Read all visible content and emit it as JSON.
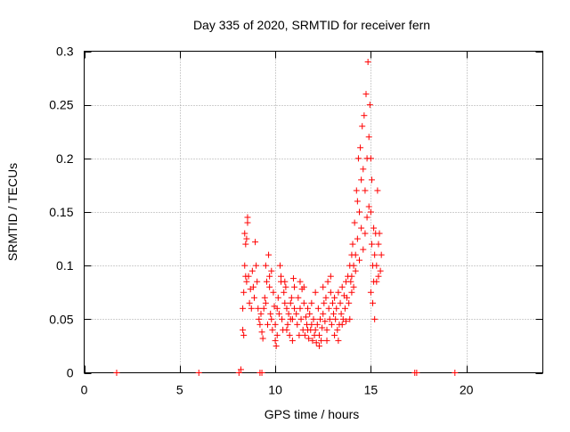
{
  "chart_data": {
    "type": "scatter",
    "title": "Day 335 of 2020, SRMTID for receiver fern",
    "xlabel": "GPS time / hours",
    "ylabel": "SRMTID / TECUs",
    "xlim": [
      0,
      24
    ],
    "ylim": [
      0,
      0.3
    ],
    "x_ticks": [
      0,
      5,
      10,
      15,
      20
    ],
    "x_tick_labels": [
      "0",
      "5",
      "10",
      "15",
      "20"
    ],
    "y_ticks": [
      0,
      0.05,
      0.1,
      0.15,
      0.2,
      0.25,
      0.3
    ],
    "y_tick_labels": [
      "0",
      "0.05",
      "0.1",
      "0.15",
      "0.2",
      "0.25",
      "0.3"
    ],
    "grid": true,
    "marker": "plus",
    "color": "#ff0000",
    "series": [
      {
        "name": "SRMTID",
        "points": [
          [
            1.7,
            0.0
          ],
          [
            6.0,
            0.0
          ],
          [
            8.1,
            0.0
          ],
          [
            8.2,
            0.003
          ],
          [
            9.2,
            0.0
          ],
          [
            9.3,
            0.0
          ],
          [
            17.3,
            0.0
          ],
          [
            17.4,
            0.0
          ],
          [
            19.4,
            0.0
          ],
          [
            8.3,
            0.06
          ],
          [
            8.35,
            0.075
          ],
          [
            8.4,
            0.1
          ],
          [
            8.45,
            0.09
          ],
          [
            8.5,
            0.085
          ],
          [
            8.3,
            0.04
          ],
          [
            8.35,
            0.035
          ],
          [
            8.4,
            0.13
          ],
          [
            8.45,
            0.12
          ],
          [
            8.5,
            0.125
          ],
          [
            8.55,
            0.145
          ],
          [
            8.55,
            0.14
          ],
          [
            8.6,
            0.09
          ],
          [
            8.65,
            0.065
          ],
          [
            8.7,
            0.078
          ],
          [
            8.75,
            0.06
          ],
          [
            8.8,
            0.095
          ],
          [
            8.85,
            0.08
          ],
          [
            8.9,
            0.07
          ],
          [
            8.95,
            0.122
          ],
          [
            9.0,
            0.1
          ],
          [
            9.05,
            0.085
          ],
          [
            9.1,
            0.06
          ],
          [
            9.15,
            0.05
          ],
          [
            9.2,
            0.045
          ],
          [
            9.25,
            0.055
          ],
          [
            9.3,
            0.038
          ],
          [
            9.35,
            0.032
          ],
          [
            9.4,
            0.06
          ],
          [
            9.45,
            0.07
          ],
          [
            9.5,
            0.065
          ],
          [
            9.55,
            0.085
          ],
          [
            9.6,
            0.045
          ],
          [
            9.65,
            0.11
          ],
          [
            9.7,
            0.09
          ],
          [
            9.75,
            0.055
          ],
          [
            9.8,
            0.05
          ],
          [
            9.85,
            0.04
          ],
          [
            9.9,
            0.075
          ],
          [
            9.95,
            0.062
          ],
          [
            10.0,
            0.03
          ],
          [
            10.05,
            0.025
          ],
          [
            10.1,
            0.06
          ],
          [
            10.15,
            0.07
          ],
          [
            10.2,
            0.055
          ],
          [
            10.25,
            0.1
          ],
          [
            10.3,
            0.085
          ],
          [
            10.35,
            0.05
          ],
          [
            10.4,
            0.04
          ],
          [
            10.45,
            0.075
          ],
          [
            10.5,
            0.065
          ],
          [
            10.55,
            0.08
          ],
          [
            10.6,
            0.06
          ],
          [
            10.65,
            0.045
          ],
          [
            10.7,
            0.055
          ],
          [
            10.75,
            0.035
          ],
          [
            10.8,
            0.065
          ],
          [
            10.85,
            0.07
          ],
          [
            10.9,
            0.05
          ],
          [
            10.95,
            0.088
          ],
          [
            11.0,
            0.06
          ],
          [
            9.5,
            0.1
          ],
          [
            9.7,
            0.08
          ],
          [
            9.8,
            0.095
          ],
          [
            10.0,
            0.045
          ],
          [
            10.1,
            0.035
          ],
          [
            10.3,
            0.09
          ],
          [
            10.5,
            0.085
          ],
          [
            10.6,
            0.04
          ],
          [
            10.8,
            0.05
          ],
          [
            10.9,
            0.03
          ],
          [
            11.0,
            0.08
          ],
          [
            11.1,
            0.055
          ],
          [
            11.15,
            0.045
          ],
          [
            11.2,
            0.07
          ],
          [
            11.25,
            0.035
          ],
          [
            11.3,
            0.06
          ],
          [
            11.35,
            0.05
          ],
          [
            11.4,
            0.078
          ],
          [
            11.45,
            0.04
          ],
          [
            11.5,
            0.065
          ],
          [
            11.55,
            0.035
          ],
          [
            11.6,
            0.052
          ],
          [
            11.65,
            0.045
          ],
          [
            11.7,
            0.06
          ],
          [
            11.75,
            0.032
          ],
          [
            11.8,
            0.055
          ],
          [
            11.85,
            0.04
          ],
          [
            11.9,
            0.045
          ],
          [
            11.95,
            0.03
          ],
          [
            12.0,
            0.05
          ],
          [
            12.05,
            0.035
          ],
          [
            12.1,
            0.04
          ],
          [
            12.15,
            0.028
          ],
          [
            12.2,
            0.045
          ],
          [
            12.25,
            0.06
          ],
          [
            12.3,
            0.035
          ],
          [
            12.35,
            0.05
          ],
          [
            12.4,
            0.03
          ],
          [
            12.45,
            0.042
          ],
          [
            12.5,
            0.055
          ],
          [
            12.55,
            0.065
          ],
          [
            12.6,
            0.048
          ],
          [
            12.65,
            0.07
          ],
          [
            12.7,
            0.04
          ],
          [
            12.75,
            0.085
          ],
          [
            12.8,
            0.06
          ],
          [
            12.85,
            0.05
          ],
          [
            12.9,
            0.075
          ],
          [
            12.95,
            0.045
          ],
          [
            13.0,
            0.065
          ],
          [
            11.3,
            0.085
          ],
          [
            11.5,
            0.08
          ],
          [
            11.7,
            0.04
          ],
          [
            11.9,
            0.065
          ],
          [
            12.1,
            0.075
          ],
          [
            12.3,
            0.025
          ],
          [
            12.5,
            0.08
          ],
          [
            12.7,
            0.03
          ],
          [
            12.9,
            0.09
          ],
          [
            13.05,
            0.055
          ],
          [
            13.1,
            0.07
          ],
          [
            13.15,
            0.05
          ],
          [
            13.2,
            0.06
          ],
          [
            13.25,
            0.04
          ],
          [
            13.3,
            0.075
          ],
          [
            13.35,
            0.045
          ],
          [
            13.4,
            0.065
          ],
          [
            13.45,
            0.055
          ],
          [
            13.5,
            0.08
          ],
          [
            13.55,
            0.05
          ],
          [
            13.6,
            0.072
          ],
          [
            13.65,
            0.06
          ],
          [
            13.7,
            0.085
          ],
          [
            13.75,
            0.07
          ],
          [
            13.8,
            0.09
          ],
          [
            13.85,
            0.065
          ],
          [
            13.9,
            0.1
          ],
          [
            13.95,
            0.085
          ],
          [
            14.0,
            0.11
          ],
          [
            13.1,
            0.035
          ],
          [
            13.3,
            0.03
          ],
          [
            13.5,
            0.045
          ],
          [
            13.7,
            0.048
          ],
          [
            13.9,
            0.05
          ],
          [
            14.0,
            0.09
          ],
          [
            14.05,
            0.12
          ],
          [
            14.1,
            0.1
          ],
          [
            14.15,
            0.14
          ],
          [
            14.2,
            0.11
          ],
          [
            14.25,
            0.17
          ],
          [
            14.3,
            0.16
          ],
          [
            14.35,
            0.2
          ],
          [
            14.4,
            0.15
          ],
          [
            14.45,
            0.21
          ],
          [
            14.5,
            0.18
          ],
          [
            14.55,
            0.23
          ],
          [
            14.6,
            0.19
          ],
          [
            14.65,
            0.24
          ],
          [
            14.7,
            0.17
          ],
          [
            14.75,
            0.26
          ],
          [
            14.8,
            0.2
          ],
          [
            14.85,
            0.29
          ],
          [
            14.9,
            0.22
          ],
          [
            14.95,
            0.25
          ],
          [
            14.0,
            0.075
          ],
          [
            14.1,
            0.08
          ],
          [
            14.2,
            0.095
          ],
          [
            14.3,
            0.125
          ],
          [
            14.4,
            0.105
          ],
          [
            14.5,
            0.135
          ],
          [
            14.6,
            0.115
          ],
          [
            14.7,
            0.13
          ],
          [
            14.8,
            0.145
          ],
          [
            14.9,
            0.155
          ],
          [
            15.0,
            0.15
          ],
          [
            15.05,
            0.12
          ],
          [
            15.1,
            0.1
          ],
          [
            15.15,
            0.085
          ],
          [
            15.2,
            0.11
          ],
          [
            15.25,
            0.13
          ],
          [
            15.3,
            0.1
          ],
          [
            15.35,
            0.17
          ],
          [
            15.4,
            0.12
          ],
          [
            15.45,
            0.13
          ],
          [
            15.5,
            0.095
          ],
          [
            15.55,
            0.11
          ],
          [
            15.0,
            0.075
          ],
          [
            15.1,
            0.065
          ],
          [
            15.2,
            0.05
          ],
          [
            15.3,
            0.085
          ],
          [
            15.4,
            0.09
          ],
          [
            15.0,
            0.2
          ],
          [
            15.05,
            0.18
          ],
          [
            15.15,
            0.135
          ]
        ]
      }
    ]
  }
}
